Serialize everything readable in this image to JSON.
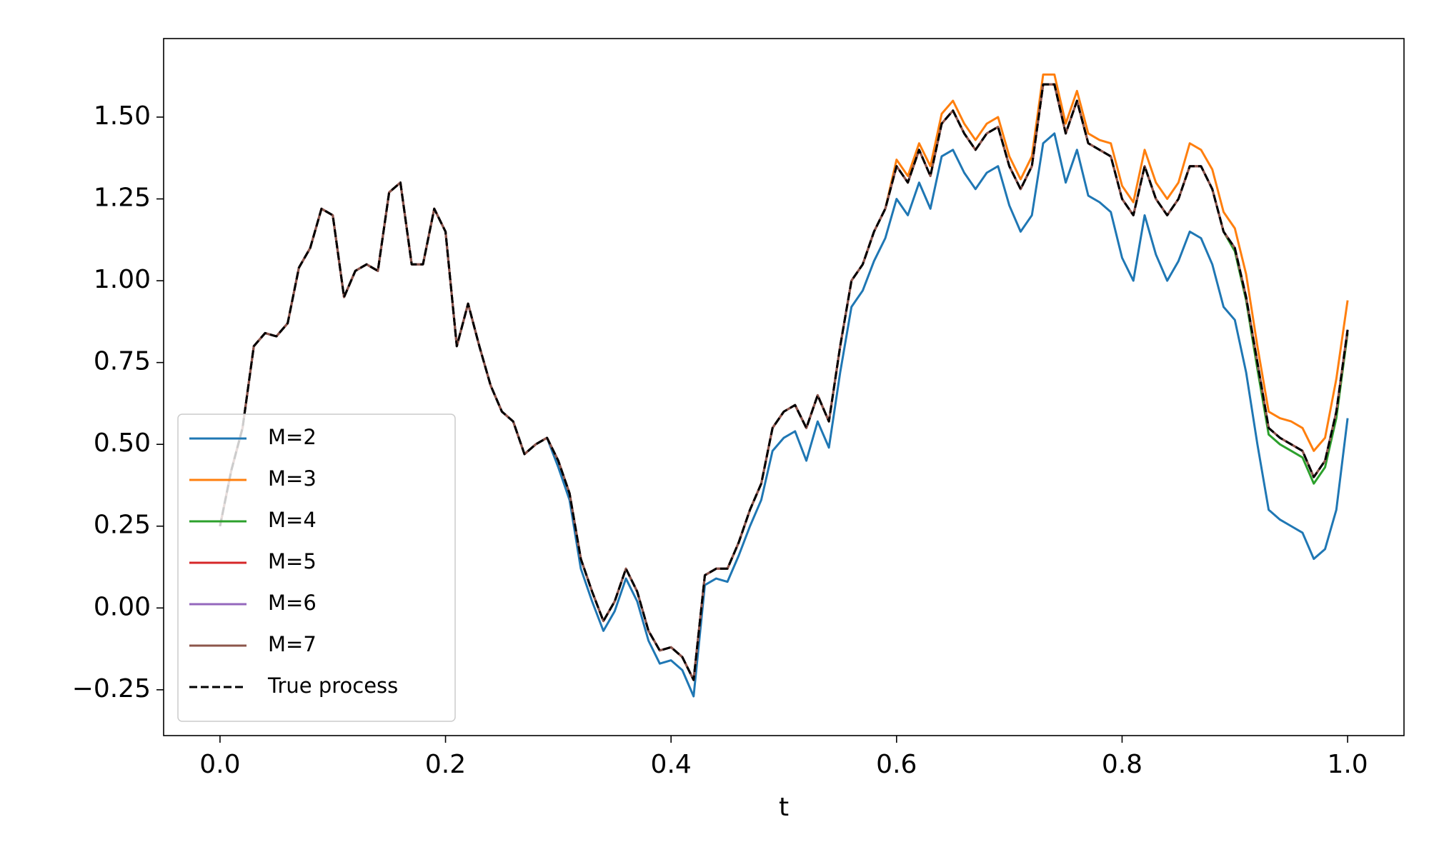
{
  "chart_data": {
    "type": "line",
    "xlabel": "t",
    "x": [
      0,
      0.01,
      0.02,
      0.03,
      0.04,
      0.05,
      0.06,
      0.07,
      0.08,
      0.09,
      0.1,
      0.11,
      0.12,
      0.13,
      0.14,
      0.15,
      0.16,
      0.17,
      0.18,
      0.19,
      0.2,
      0.21,
      0.22,
      0.23,
      0.24,
      0.25,
      0.26,
      0.27,
      0.28,
      0.29,
      0.3,
      0.31,
      0.32,
      0.33,
      0.34,
      0.35,
      0.36,
      0.37,
      0.38,
      0.39,
      0.4,
      0.41,
      0.42,
      0.43,
      0.44,
      0.45,
      0.46,
      0.47,
      0.48,
      0.49,
      0.5,
      0.51,
      0.52,
      0.53,
      0.54,
      0.55,
      0.56,
      0.57,
      0.58,
      0.59,
      0.6,
      0.61,
      0.62,
      0.63,
      0.64,
      0.65,
      0.66,
      0.67,
      0.68,
      0.69,
      0.7,
      0.71,
      0.72,
      0.73,
      0.74,
      0.75,
      0.76,
      0.77,
      0.78,
      0.79,
      0.8,
      0.81,
      0.82,
      0.83,
      0.84,
      0.85,
      0.86,
      0.87,
      0.88,
      0.89,
      0.9,
      0.91,
      0.92,
      0.93,
      0.94,
      0.95,
      0.96,
      0.97,
      0.98,
      0.99,
      1.0
    ],
    "series": [
      {
        "name": "M=2",
        "color": "#1f77b4",
        "linestyle": "solid",
        "values": [
          0.25,
          0.42,
          0.55,
          0.8,
          0.84,
          0.83,
          0.87,
          1.04,
          1.1,
          1.22,
          1.2,
          0.95,
          1.03,
          1.05,
          1.03,
          1.27,
          1.3,
          1.05,
          1.05,
          1.22,
          1.15,
          0.8,
          0.93,
          0.8,
          0.68,
          0.6,
          0.57,
          0.47,
          0.5,
          0.52,
          0.43,
          0.33,
          0.12,
          0.02,
          -0.07,
          -0.01,
          0.09,
          0.02,
          -0.1,
          -0.17,
          -0.16,
          -0.19,
          -0.27,
          0.07,
          0.09,
          0.08,
          0.16,
          0.25,
          0.33,
          0.48,
          0.52,
          0.54,
          0.45,
          0.57,
          0.49,
          0.72,
          0.92,
          0.97,
          1.06,
          1.13,
          1.25,
          1.2,
          1.3,
          1.22,
          1.38,
          1.4,
          1.33,
          1.28,
          1.33,
          1.35,
          1.23,
          1.15,
          1.2,
          1.42,
          1.45,
          1.3,
          1.4,
          1.26,
          1.24,
          1.21,
          1.07,
          1.0,
          1.2,
          1.08,
          1.0,
          1.06,
          1.15,
          1.13,
          1.05,
          0.92,
          0.88,
          0.72,
          0.5,
          0.3,
          0.27,
          0.25,
          0.23,
          0.15,
          0.18,
          0.3,
          0.58
        ]
      },
      {
        "name": "M=3",
        "color": "#ff7f0e",
        "linestyle": "solid",
        "values": [
          0.25,
          0.42,
          0.55,
          0.8,
          0.84,
          0.83,
          0.87,
          1.04,
          1.1,
          1.22,
          1.2,
          0.95,
          1.03,
          1.05,
          1.03,
          1.27,
          1.3,
          1.05,
          1.05,
          1.22,
          1.15,
          0.8,
          0.93,
          0.8,
          0.68,
          0.6,
          0.57,
          0.47,
          0.5,
          0.52,
          0.45,
          0.35,
          0.15,
          0.05,
          -0.04,
          0.02,
          0.12,
          0.05,
          -0.07,
          -0.13,
          -0.12,
          -0.15,
          -0.22,
          0.1,
          0.12,
          0.12,
          0.2,
          0.3,
          0.38,
          0.55,
          0.6,
          0.62,
          0.55,
          0.65,
          0.57,
          0.8,
          1.0,
          1.05,
          1.15,
          1.22,
          1.37,
          1.32,
          1.42,
          1.35,
          1.51,
          1.55,
          1.48,
          1.43,
          1.48,
          1.5,
          1.38,
          1.31,
          1.38,
          1.63,
          1.63,
          1.48,
          1.58,
          1.45,
          1.43,
          1.42,
          1.29,
          1.24,
          1.4,
          1.3,
          1.25,
          1.3,
          1.42,
          1.4,
          1.34,
          1.21,
          1.16,
          1.02,
          0.8,
          0.6,
          0.58,
          0.57,
          0.55,
          0.48,
          0.52,
          0.7,
          0.94
        ]
      },
      {
        "name": "M=4",
        "color": "#2ca02c",
        "linestyle": "solid",
        "values": [
          0.25,
          0.42,
          0.55,
          0.8,
          0.84,
          0.83,
          0.87,
          1.04,
          1.1,
          1.22,
          1.2,
          0.95,
          1.03,
          1.05,
          1.03,
          1.27,
          1.3,
          1.05,
          1.05,
          1.22,
          1.15,
          0.8,
          0.93,
          0.8,
          0.68,
          0.6,
          0.57,
          0.47,
          0.5,
          0.52,
          0.45,
          0.35,
          0.15,
          0.05,
          -0.04,
          0.02,
          0.12,
          0.05,
          -0.07,
          -0.13,
          -0.12,
          -0.15,
          -0.22,
          0.1,
          0.12,
          0.12,
          0.2,
          0.3,
          0.38,
          0.55,
          0.6,
          0.62,
          0.55,
          0.65,
          0.57,
          0.8,
          1.0,
          1.05,
          1.15,
          1.22,
          1.35,
          1.3,
          1.4,
          1.32,
          1.48,
          1.52,
          1.45,
          1.4,
          1.45,
          1.47,
          1.35,
          1.28,
          1.35,
          1.6,
          1.6,
          1.45,
          1.55,
          1.42,
          1.4,
          1.38,
          1.25,
          1.2,
          1.35,
          1.25,
          1.2,
          1.25,
          1.35,
          1.35,
          1.28,
          1.15,
          1.09,
          0.94,
          0.73,
          0.53,
          0.5,
          0.48,
          0.46,
          0.38,
          0.43,
          0.58,
          0.84
        ]
      },
      {
        "name": "M=5",
        "color": "#d62728",
        "linestyle": "solid",
        "values": [
          0.25,
          0.42,
          0.55,
          0.8,
          0.84,
          0.83,
          0.87,
          1.04,
          1.1,
          1.22,
          1.2,
          0.95,
          1.03,
          1.05,
          1.03,
          1.27,
          1.3,
          1.05,
          1.05,
          1.22,
          1.15,
          0.8,
          0.93,
          0.8,
          0.68,
          0.6,
          0.57,
          0.47,
          0.5,
          0.52,
          0.45,
          0.35,
          0.15,
          0.05,
          -0.04,
          0.02,
          0.12,
          0.05,
          -0.07,
          -0.13,
          -0.12,
          -0.15,
          -0.22,
          0.1,
          0.12,
          0.12,
          0.2,
          0.3,
          0.38,
          0.55,
          0.6,
          0.62,
          0.55,
          0.65,
          0.57,
          0.8,
          1.0,
          1.05,
          1.15,
          1.22,
          1.35,
          1.3,
          1.4,
          1.32,
          1.48,
          1.52,
          1.45,
          1.4,
          1.45,
          1.47,
          1.35,
          1.28,
          1.35,
          1.6,
          1.6,
          1.45,
          1.55,
          1.42,
          1.4,
          1.38,
          1.25,
          1.2,
          1.35,
          1.25,
          1.2,
          1.25,
          1.35,
          1.35,
          1.28,
          1.15,
          1.1,
          0.95,
          0.75,
          0.55,
          0.52,
          0.5,
          0.48,
          0.4,
          0.45,
          0.6,
          0.85
        ]
      },
      {
        "name": "M=6",
        "color": "#9467bd",
        "linestyle": "solid",
        "values": [
          0.25,
          0.42,
          0.55,
          0.8,
          0.84,
          0.83,
          0.87,
          1.04,
          1.1,
          1.22,
          1.2,
          0.95,
          1.03,
          1.05,
          1.03,
          1.27,
          1.3,
          1.05,
          1.05,
          1.22,
          1.15,
          0.8,
          0.93,
          0.8,
          0.68,
          0.6,
          0.57,
          0.47,
          0.5,
          0.52,
          0.45,
          0.35,
          0.15,
          0.05,
          -0.04,
          0.02,
          0.12,
          0.05,
          -0.07,
          -0.13,
          -0.12,
          -0.15,
          -0.22,
          0.1,
          0.12,
          0.12,
          0.2,
          0.3,
          0.38,
          0.55,
          0.6,
          0.62,
          0.55,
          0.65,
          0.57,
          0.8,
          1.0,
          1.05,
          1.15,
          1.22,
          1.35,
          1.3,
          1.4,
          1.32,
          1.48,
          1.52,
          1.45,
          1.4,
          1.45,
          1.47,
          1.35,
          1.28,
          1.35,
          1.6,
          1.6,
          1.45,
          1.55,
          1.42,
          1.4,
          1.38,
          1.25,
          1.2,
          1.35,
          1.25,
          1.2,
          1.25,
          1.35,
          1.35,
          1.28,
          1.15,
          1.1,
          0.95,
          0.75,
          0.55,
          0.52,
          0.5,
          0.48,
          0.4,
          0.45,
          0.6,
          0.85
        ]
      },
      {
        "name": "M=7",
        "color": "#8c564b",
        "linestyle": "solid",
        "values": [
          0.25,
          0.42,
          0.55,
          0.8,
          0.84,
          0.83,
          0.87,
          1.04,
          1.1,
          1.22,
          1.2,
          0.95,
          1.03,
          1.05,
          1.03,
          1.27,
          1.3,
          1.05,
          1.05,
          1.22,
          1.15,
          0.8,
          0.93,
          0.8,
          0.68,
          0.6,
          0.57,
          0.47,
          0.5,
          0.52,
          0.45,
          0.35,
          0.15,
          0.05,
          -0.04,
          0.02,
          0.12,
          0.05,
          -0.07,
          -0.13,
          -0.12,
          -0.15,
          -0.22,
          0.1,
          0.12,
          0.12,
          0.2,
          0.3,
          0.38,
          0.55,
          0.6,
          0.62,
          0.55,
          0.65,
          0.57,
          0.8,
          1.0,
          1.05,
          1.15,
          1.22,
          1.35,
          1.3,
          1.4,
          1.32,
          1.48,
          1.52,
          1.45,
          1.4,
          1.45,
          1.47,
          1.35,
          1.28,
          1.35,
          1.6,
          1.6,
          1.45,
          1.55,
          1.42,
          1.4,
          1.38,
          1.25,
          1.2,
          1.35,
          1.25,
          1.2,
          1.25,
          1.35,
          1.35,
          1.28,
          1.15,
          1.1,
          0.95,
          0.75,
          0.55,
          0.52,
          0.5,
          0.48,
          0.4,
          0.45,
          0.6,
          0.85
        ]
      },
      {
        "name": "True process",
        "color": "#000000",
        "linestyle": "dashed",
        "values": [
          0.25,
          0.42,
          0.55,
          0.8,
          0.84,
          0.83,
          0.87,
          1.04,
          1.1,
          1.22,
          1.2,
          0.95,
          1.03,
          1.05,
          1.03,
          1.27,
          1.3,
          1.05,
          1.05,
          1.22,
          1.15,
          0.8,
          0.93,
          0.8,
          0.68,
          0.6,
          0.57,
          0.47,
          0.5,
          0.52,
          0.45,
          0.35,
          0.15,
          0.05,
          -0.04,
          0.02,
          0.12,
          0.05,
          -0.07,
          -0.13,
          -0.12,
          -0.15,
          -0.22,
          0.1,
          0.12,
          0.12,
          0.2,
          0.3,
          0.38,
          0.55,
          0.6,
          0.62,
          0.55,
          0.65,
          0.57,
          0.8,
          1.0,
          1.05,
          1.15,
          1.22,
          1.35,
          1.3,
          1.4,
          1.32,
          1.48,
          1.52,
          1.45,
          1.4,
          1.45,
          1.47,
          1.35,
          1.28,
          1.35,
          1.6,
          1.6,
          1.45,
          1.55,
          1.42,
          1.4,
          1.38,
          1.25,
          1.2,
          1.35,
          1.25,
          1.2,
          1.25,
          1.35,
          1.35,
          1.28,
          1.15,
          1.1,
          0.95,
          0.75,
          0.55,
          0.52,
          0.5,
          0.48,
          0.4,
          0.45,
          0.6,
          0.85
        ]
      }
    ],
    "xlim": [
      -0.05,
      1.05
    ],
    "xticks": [
      {
        "value": 0,
        "label": "0.0"
      },
      0.2,
      0.4,
      0.6,
      0.8,
      {
        "value": 1,
        "label": "1.0"
      }
    ],
    "ylim": [
      -0.39,
      1.74
    ],
    "yticks": [
      {
        "value": -0.25,
        "label": "−0.25"
      },
      {
        "value": 0,
        "label": "0.00"
      },
      0.25,
      {
        "value": 0.5,
        "label": "0.50"
      },
      0.75,
      {
        "value": 1,
        "label": "1.00"
      },
      1.25,
      {
        "value": 1.5,
        "label": "1.50"
      }
    ],
    "grid": false,
    "legend_loc": "lower left"
  }
}
